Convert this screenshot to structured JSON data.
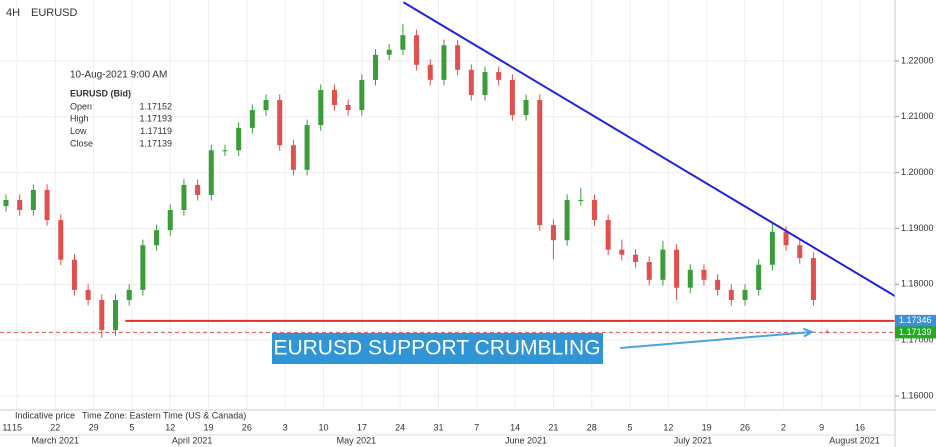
{
  "chart_data": {
    "type": "candlestick",
    "title": "EURUSD",
    "timeframe": "4H",
    "x": [
      13,
      15.5,
      18,
      20.5,
      23,
      25.5,
      28,
      30.5,
      33,
      35.5,
      38,
      40.5,
      43,
      45.5,
      48,
      50.5,
      53,
      55.5,
      58,
      60.5,
      63,
      65.5,
      68,
      70.5,
      73,
      75.5,
      78,
      80.5,
      83,
      85.5,
      88,
      90.5,
      93,
      95.5,
      98,
      100.5,
      103,
      105.5,
      108,
      110.5,
      113,
      115.5,
      118,
      120.5,
      123,
      125.5,
      128,
      130.5,
      133,
      135.5,
      138,
      140.5,
      143,
      145.5,
      148,
      150.5,
      153,
      155.5,
      158,
      160.5,
      163
    ],
    "open": [
      1.194,
      1.1951,
      1.1933,
      1.1969,
      1.1915,
      1.1844,
      1.179,
      1.1772,
      1.1718,
      1.1772,
      1.179,
      1.187,
      1.1897,
      1.1933,
      1.1978,
      1.196,
      1.204,
      1.204,
      1.208,
      1.2112,
      1.213,
      1.2049,
      1.2005,
      1.2085,
      1.2148,
      1.2121,
      1.2112,
      1.2166,
      1.2211,
      1.222,
      1.2246,
      1.2193,
      1.2166,
      1.2228,
      1.2184,
      1.2139,
      1.218,
      1.2166,
      1.2103,
      1.213,
      1.1906,
      1.1879,
      1.1951,
      1.1951,
      1.1915,
      1.1862,
      1.1853,
      1.184,
      1.1808,
      1.1862,
      1.1794,
      1.1826,
      1.1808,
      1.179,
      1.1772,
      1.179,
      1.1835,
      1.1894,
      1.187,
      1.1847,
      1.17152
    ],
    "high": [
      1.1961,
      1.1961,
      1.1979,
      1.1979,
      1.1925,
      1.1854,
      1.18,
      1.1782,
      1.1782,
      1.18,
      1.188,
      1.1907,
      1.1943,
      1.1988,
      1.1988,
      1.205,
      1.205,
      1.209,
      1.2122,
      1.214,
      1.214,
      1.2059,
      1.2095,
      1.2158,
      1.2158,
      1.2131,
      1.2176,
      1.2221,
      1.223,
      1.2266,
      1.2256,
      1.2203,
      1.2238,
      1.2238,
      1.2194,
      1.219,
      1.219,
      1.2176,
      1.214,
      1.214,
      1.1916,
      1.1961,
      1.1973,
      1.1961,
      1.1925,
      1.188,
      1.1863,
      1.185,
      1.1878,
      1.1872,
      1.1836,
      1.1836,
      1.1818,
      1.18,
      1.18,
      1.1845,
      1.191,
      1.1904,
      1.188,
      1.1857,
      1.17193
    ],
    "low": [
      1.193,
      1.1923,
      1.1923,
      1.1905,
      1.1834,
      1.178,
      1.1762,
      1.1704,
      1.1708,
      1.1762,
      1.178,
      1.186,
      1.1887,
      1.1923,
      1.195,
      1.195,
      1.203,
      1.203,
      1.207,
      1.2102,
      1.2039,
      1.1995,
      1.1995,
      1.2075,
      1.2111,
      1.2102,
      1.2102,
      1.2156,
      1.2201,
      1.221,
      1.2183,
      1.2156,
      1.2156,
      1.2174,
      1.2129,
      1.2129,
      1.2156,
      1.2093,
      1.2093,
      1.1896,
      1.1845,
      1.1869,
      1.1941,
      1.1905,
      1.1852,
      1.1843,
      1.183,
      1.1798,
      1.1798,
      1.1772,
      1.1784,
      1.1798,
      1.178,
      1.1762,
      1.1762,
      1.178,
      1.1825,
      1.186,
      1.1837,
      1.1762,
      1.17119
    ],
    "close": [
      1.1951,
      1.1933,
      1.1969,
      1.1915,
      1.1844,
      1.179,
      1.1772,
      1.1718,
      1.1772,
      1.179,
      1.187,
      1.1897,
      1.1933,
      1.1978,
      1.196,
      1.204,
      1.204,
      1.208,
      1.2112,
      1.213,
      1.2049,
      1.2005,
      1.2085,
      1.2148,
      1.2121,
      1.2112,
      1.2166,
      1.2211,
      1.222,
      1.2246,
      1.2193,
      1.2166,
      1.2228,
      1.2184,
      1.2139,
      1.218,
      1.2166,
      1.2103,
      1.213,
      1.1906,
      1.1879,
      1.1951,
      1.1951,
      1.1915,
      1.1862,
      1.1853,
      1.184,
      1.1808,
      1.1862,
      1.1794,
      1.1826,
      1.1808,
      1.179,
      1.1772,
      1.179,
      1.1835,
      1.1894,
      1.187,
      1.1847,
      1.1772,
      1.17139
    ],
    "colors": {
      "up": "#3a9d3a",
      "down": "#e0504f"
    },
    "xlim": [
      11.9,
      175.4
    ],
    "ylim": [
      1.1575,
      1.2309
    ],
    "grid": true,
    "yticks": [
      {
        "value": 1.16,
        "label": "1.16000"
      },
      {
        "value": 1.17,
        "label": "1.17000"
      },
      {
        "value": 1.18,
        "label": "1.18000"
      },
      {
        "value": 1.19,
        "label": "1.19000"
      },
      {
        "value": 1.2,
        "label": "1.20000"
      },
      {
        "value": 1.21,
        "label": "1.21000"
      },
      {
        "value": 1.22,
        "label": "1.22000"
      }
    ],
    "xticks": [
      {
        "value": 11,
        "label": "11"
      },
      {
        "value": 15,
        "label": "15"
      },
      {
        "value": 22,
        "label": "22"
      },
      {
        "value": 29,
        "label": "29"
      },
      {
        "value": 36,
        "label": "5"
      },
      {
        "value": 43,
        "label": "12"
      },
      {
        "value": 50,
        "label": "19"
      },
      {
        "value": 57,
        "label": "26"
      },
      {
        "value": 64,
        "label": "3"
      },
      {
        "value": 71,
        "label": "10"
      },
      {
        "value": 78,
        "label": "17"
      },
      {
        "value": 85,
        "label": "24"
      },
      {
        "value": 92,
        "label": "31"
      },
      {
        "value": 99,
        "label": "7"
      },
      {
        "value": 106,
        "label": "14"
      },
      {
        "value": 113,
        "label": "21"
      },
      {
        "value": 120,
        "label": "28"
      },
      {
        "value": 127,
        "label": "5"
      },
      {
        "value": 134,
        "label": "12"
      },
      {
        "value": 141,
        "label": "19"
      },
      {
        "value": 148,
        "label": "26"
      },
      {
        "value": 155,
        "label": "2"
      },
      {
        "value": 162,
        "label": "9"
      },
      {
        "value": 169,
        "label": "16"
      }
    ],
    "month_labels": [
      {
        "value": 22,
        "label": "March 2021"
      },
      {
        "value": 47,
        "label": "April 2021"
      },
      {
        "value": 77,
        "label": "May 2021"
      },
      {
        "value": 108,
        "label": "June 2021"
      },
      {
        "value": 138.5,
        "label": "July 2021"
      },
      {
        "value": 168,
        "label": "August 2021"
      }
    ],
    "lines": [
      {
        "x": [
          85.6,
          175.4
        ],
        "y": [
          1.2305,
          1.1779
        ],
        "color": "#2222dd",
        "width": 2
      },
      {
        "x": [
          34.8,
          175.4
        ],
        "y": [
          1.17346,
          1.17346
        ],
        "color": "#e03030",
        "width": 2
      },
      {
        "x": [
          11.9,
          175.4
        ],
        "y": [
          1.17139,
          1.17139
        ],
        "color": "#e05050",
        "width": 1,
        "dashed": true
      }
    ],
    "price_tags": [
      {
        "value": 1.17346,
        "label": "1.17346",
        "color": "#3d8fd8"
      },
      {
        "value": 1.17139,
        "label": "1.17139",
        "color": "#22aa22"
      }
    ],
    "annotation": {
      "text": "EURUSD SUPPORT CRUMBLING",
      "arrow": {
        "x": [
          125.2,
          160.2
        ],
        "y": [
          1.16861,
          1.17147
        ]
      },
      "color": "#4aa3df"
    },
    "info": {
      "datetime": "10-Aug-2021 9:00 AM",
      "symbol": "EURUSD (Bid)",
      "rows": [
        {
          "label": "Open",
          "value": "1.17152"
        },
        {
          "label": "High",
          "value": "1.17193"
        },
        {
          "label": "Low",
          "value": "1.17119"
        },
        {
          "label": "Close",
          "value": "1.17139"
        }
      ]
    },
    "footer": {
      "price_type": "Indicative price",
      "timezone": "Time Zone: Eastern Time (US & Canada)"
    }
  }
}
